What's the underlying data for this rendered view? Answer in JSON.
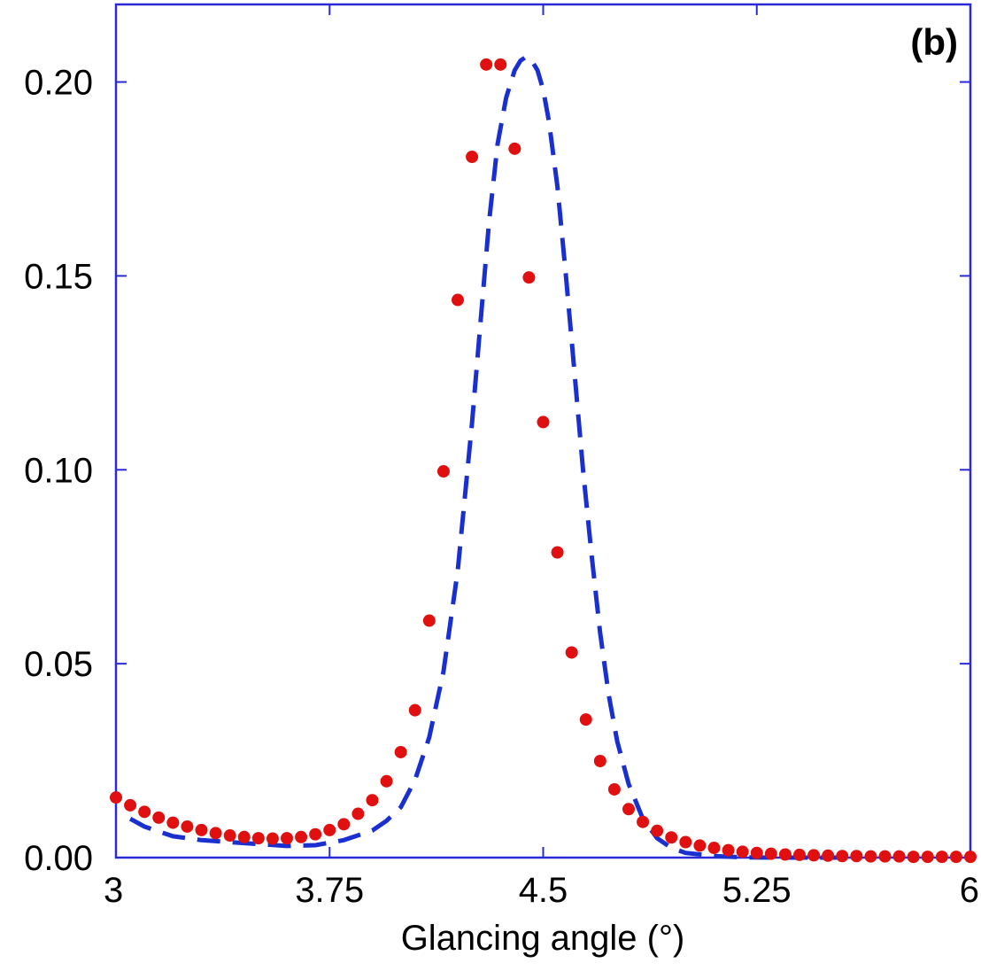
{
  "chart_data": {
    "type": "line",
    "panel_label": "(b)",
    "title": "",
    "xlabel": "Glancing angle (°)",
    "ylabel": "",
    "xlim": [
      3,
      6
    ],
    "ylim": [
      0,
      0.22
    ],
    "x_ticks": [
      3,
      3.75,
      4.5,
      5.25,
      6
    ],
    "x_tick_labels": [
      "3",
      "3.75",
      "4.5",
      "5.25",
      "6"
    ],
    "y_ticks": [
      0,
      0.05,
      0.1,
      0.15,
      0.2
    ],
    "y_tick_labels": [
      "0.00",
      "0.05",
      "0.10",
      "0.15",
      "0.20"
    ],
    "grid": false,
    "legend": "none",
    "colors": {
      "axes": "#2a2ad8",
      "dashed": "#1a2fd0",
      "dots": "#e01010"
    },
    "series": [
      {
        "style": "dashed",
        "color": "#1a2fd0",
        "x": [
          3.05,
          3.1,
          3.2,
          3.3,
          3.4,
          3.5,
          3.6,
          3.7,
          3.8,
          3.9,
          3.95,
          4.0,
          4.05,
          4.1,
          4.15,
          4.2,
          4.25,
          4.28,
          4.31,
          4.34,
          4.37,
          4.4,
          4.42,
          4.44,
          4.46,
          4.48,
          4.5,
          4.52,
          4.55,
          4.58,
          4.61,
          4.64,
          4.67,
          4.7,
          4.73,
          4.76,
          4.8,
          4.85,
          4.9,
          4.95,
          5.0,
          5.1,
          5.2,
          5.3,
          5.4,
          5.5,
          5.6
        ],
        "y": [
          0.01,
          0.008,
          0.0055,
          0.0045,
          0.004,
          0.0035,
          0.003,
          0.0032,
          0.0045,
          0.007,
          0.0095,
          0.013,
          0.02,
          0.031,
          0.048,
          0.074,
          0.112,
          0.138,
          0.164,
          0.184,
          0.196,
          0.203,
          0.2055,
          0.2065,
          0.2055,
          0.203,
          0.198,
          0.19,
          0.173,
          0.15,
          0.125,
          0.1,
          0.078,
          0.058,
          0.042,
          0.03,
          0.019,
          0.01,
          0.005,
          0.0025,
          0.0012,
          0.0004,
          0.0001,
          0.0,
          0.0,
          0.0,
          0.0
        ]
      },
      {
        "style": "dots",
        "color": "#e01010",
        "x": [
          3.0,
          3.05,
          3.1,
          3.15,
          3.2,
          3.25,
          3.3,
          3.35,
          3.4,
          3.45,
          3.5,
          3.55,
          3.6,
          3.65,
          3.7,
          3.75,
          3.8,
          3.85,
          3.9,
          3.95,
          4.0,
          4.05,
          4.1,
          4.15,
          4.2,
          4.25,
          4.3,
          4.35,
          4.4,
          4.45,
          4.5,
          4.55,
          4.6,
          4.65,
          4.7,
          4.75,
          4.8,
          4.85,
          4.9,
          4.95,
          5.0,
          5.05,
          5.1,
          5.15,
          5.2,
          5.25,
          5.3,
          5.35,
          5.4,
          5.45,
          5.5,
          5.55,
          5.6,
          5.65,
          5.7,
          5.75,
          5.8,
          5.85,
          5.9,
          5.95,
          6.0
        ],
        "y": [
          0.0155,
          0.0135,
          0.0118,
          0.0103,
          0.009,
          0.008,
          0.0071,
          0.0063,
          0.0057,
          0.0053,
          0.005,
          0.0049,
          0.005,
          0.0053,
          0.006,
          0.0071,
          0.0086,
          0.0113,
          0.0148,
          0.0197,
          0.0272,
          0.038,
          0.0611,
          0.0996,
          0.1438,
          0.1807,
          0.2045,
          0.2045,
          0.1828,
          0.1496,
          0.1123,
          0.0787,
          0.0529,
          0.0356,
          0.0249,
          0.0176,
          0.0125,
          0.0092,
          0.0069,
          0.0052,
          0.004,
          0.0031,
          0.0025,
          0.0019,
          0.0015,
          0.0012,
          0.001,
          0.0008,
          0.0007,
          0.0006,
          0.0005,
          0.0004,
          0.0004,
          0.0003,
          0.0003,
          0.0003,
          0.0002,
          0.0002,
          0.0002,
          0.0002,
          0.0002
        ]
      }
    ]
  }
}
